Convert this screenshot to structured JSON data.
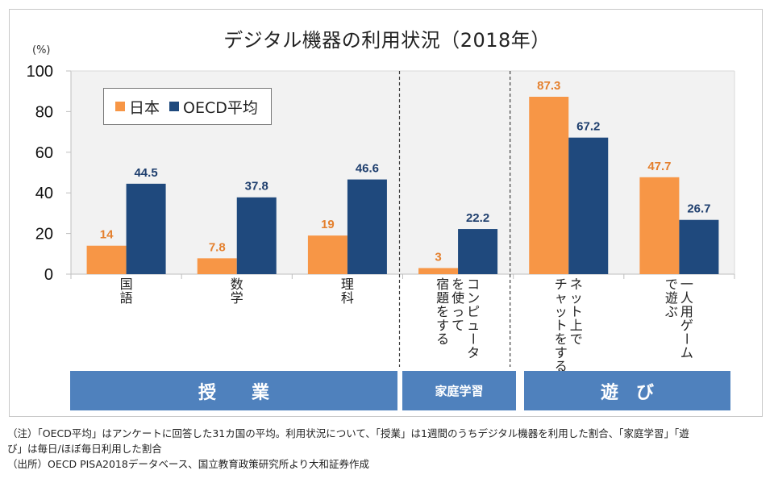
{
  "chart_data": {
    "type": "bar",
    "title": "デジタル機器の利用状況（2018年）",
    "ylabel": "(%)",
    "xlabel": "",
    "ylim": [
      0,
      100
    ],
    "yticks": [
      0,
      20,
      40,
      60,
      80,
      100
    ],
    "grid": false,
    "legend_position": "top-left",
    "categories": [
      "国語",
      "数学",
      "理科",
      "コンピュータを使って宿題をする",
      "ネット上でチャットをする",
      "一人用ゲームで遊ぶ"
    ],
    "category_label_lines": [
      [
        "国語"
      ],
      [
        "数学"
      ],
      [
        "理科"
      ],
      [
        "コンピュータ",
        "を使って",
        "宿題をする"
      ],
      [
        "ネット上で",
        "チャットをする"
      ],
      [
        "一人用ゲーム",
        "で遊ぶ"
      ]
    ],
    "series": [
      {
        "name": "日本",
        "color": "#f79646",
        "label_color": "#e4802e",
        "values": [
          14,
          7.8,
          19,
          3,
          87.3,
          47.7
        ],
        "labels": [
          "14",
          "7.8",
          "19",
          "3",
          "87.3",
          "47.7"
        ]
      },
      {
        "name": "OECD平均",
        "color": "#1f497d",
        "label_color": "#1f3f6e",
        "values": [
          44.5,
          37.8,
          46.6,
          22.2,
          67.2,
          26.7
        ],
        "labels": [
          "44.5",
          "37.8",
          "46.6",
          "22.2",
          "67.2",
          "26.7"
        ]
      }
    ],
    "groups": [
      {
        "label": "授　　業",
        "categories": [
          0,
          1,
          2
        ]
      },
      {
        "label": "家庭学習",
        "categories": [
          3
        ]
      },
      {
        "label": "遊　び",
        "categories": [
          4,
          5
        ]
      }
    ]
  },
  "colors": {
    "plot_background": "#f2f2f2",
    "band": "#4f81bd",
    "japan": "#f79646",
    "oecd": "#1f497d"
  },
  "notes": {
    "line1": "（注）「OECD平均」はアンケートに回答した31カ国の平均。利用状況について、「授業」は1週間のうちデジタル機器を利用した割合、「家庭学習」「遊",
    "line2": "び」は毎日/ほぼ毎日利用した割合",
    "line3": "（出所）OECD PISA2018データベース、国立教育政策研究所より大和証券作成"
  }
}
